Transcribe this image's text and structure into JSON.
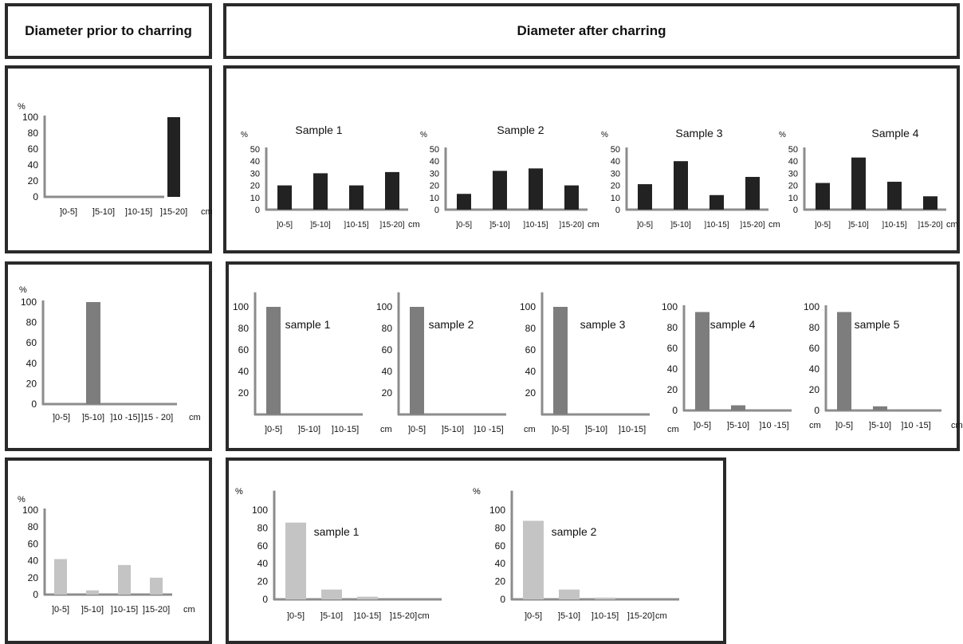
{
  "headers": {
    "prior": "Diameter prior  to charring",
    "after": "Diameter after charring"
  },
  "colors": {
    "black_bar": "#222222",
    "gray_bar": "#7d7d7d",
    "light_bar": "#c4c4c4",
    "axis": "#8c8c8c",
    "frame": "#2a2a2a"
  },
  "chart_data": [
    {
      "id": "r1-prior",
      "type": "bar",
      "title": "",
      "ylabel": "%",
      "ylim": [
        0,
        100
      ],
      "yticks": [
        0,
        20,
        40,
        60,
        80,
        100
      ],
      "categories": [
        "]0-5]",
        "]5-10]",
        "]10-15]",
        "]15-20]"
      ],
      "unit": "cm",
      "values": [
        0,
        0,
        0,
        100
      ],
      "color": "#222222"
    },
    {
      "id": "r1-s1",
      "type": "bar",
      "title": "Sample 1",
      "ylabel": "%",
      "ylim": [
        0,
        50
      ],
      "yticks": [
        0,
        10,
        20,
        30,
        40,
        50
      ],
      "categories": [
        "]0-5]",
        "]5-10]",
        "]10-15]",
        "]15-20]"
      ],
      "unit": "cm",
      "values": [
        20,
        30,
        20,
        31
      ],
      "color": "#222222"
    },
    {
      "id": "r1-s2",
      "type": "bar",
      "title": "Sample 2",
      "ylabel": "%",
      "ylim": [
        0,
        50
      ],
      "yticks": [
        0,
        10,
        20,
        30,
        40,
        50
      ],
      "categories": [
        "]0-5]",
        "]5-10]",
        "]10-15]",
        "]15-20]"
      ],
      "unit": "cm",
      "values": [
        13,
        32,
        34,
        20
      ],
      "color": "#222222"
    },
    {
      "id": "r1-s3",
      "type": "bar",
      "title": "Sample 3",
      "ylabel": "%",
      "ylim": [
        0,
        50
      ],
      "yticks": [
        0,
        10,
        20,
        30,
        40,
        50
      ],
      "categories": [
        "]0-5]",
        "]5-10]",
        "]10-15]",
        "]15-20]"
      ],
      "unit": "cm",
      "values": [
        21,
        40,
        12,
        27
      ],
      "color": "#222222"
    },
    {
      "id": "r1-s4",
      "type": "bar",
      "title": "Sample 4",
      "ylabel": "%",
      "ylim": [
        0,
        50
      ],
      "yticks": [
        0,
        10,
        20,
        30,
        40,
        50
      ],
      "categories": [
        "]0-5]",
        "]5-10]",
        "]10-15]",
        "]15-20]"
      ],
      "unit": "cm",
      "values": [
        22,
        43,
        23,
        11
      ],
      "color": "#222222"
    },
    {
      "id": "r2-prior",
      "type": "bar",
      "title": "",
      "ylabel": "%",
      "ylim": [
        0,
        100
      ],
      "yticks": [
        0,
        20,
        40,
        60,
        80,
        100
      ],
      "categories": [
        "]0-5]",
        "]5-10]",
        "]10 -15]",
        "]15 - 20]"
      ],
      "unit": "cm",
      "values": [
        0,
        100,
        0,
        0
      ],
      "color": "#7d7d7d"
    },
    {
      "id": "r2-s1",
      "type": "bar",
      "title": "sample 1",
      "ylabel": "",
      "ylim": [
        0,
        100
      ],
      "yticks": [
        20,
        40,
        60,
        80,
        100
      ],
      "categories": [
        "]0-5]",
        "]5-10]",
        "]10-15]"
      ],
      "unit": "cm",
      "values": [
        100,
        0,
        0
      ],
      "color": "#7d7d7d"
    },
    {
      "id": "r2-s2",
      "type": "bar",
      "title": "sample 2",
      "ylabel": "",
      "ylim": [
        0,
        100
      ],
      "yticks": [
        20,
        40,
        60,
        80,
        100
      ],
      "categories": [
        "]0-5]",
        "]5-10]",
        "]10 -15]"
      ],
      "unit": "cm",
      "values": [
        100,
        0,
        0
      ],
      "color": "#7d7d7d"
    },
    {
      "id": "r2-s3",
      "type": "bar",
      "title": "sample 3",
      "ylabel": "",
      "ylim": [
        0,
        100
      ],
      "yticks": [
        20,
        40,
        60,
        80,
        100
      ],
      "categories": [
        "]0-5]",
        "]5-10]",
        "]10-15]"
      ],
      "unit": "cm",
      "values": [
        100,
        0,
        0
      ],
      "color": "#7d7d7d"
    },
    {
      "id": "r2-s4",
      "type": "bar",
      "title": "sample 4",
      "ylabel": "",
      "ylim": [
        0,
        100
      ],
      "yticks": [
        0,
        20,
        40,
        60,
        80,
        100
      ],
      "categories": [
        "]0-5]",
        "]5-10]",
        "]10 -15]"
      ],
      "unit": "cm",
      "values": [
        95,
        5,
        0
      ],
      "color": "#7d7d7d"
    },
    {
      "id": "r2-s5",
      "type": "bar",
      "title": "sample 5",
      "ylabel": "",
      "ylim": [
        0,
        100
      ],
      "yticks": [
        0,
        20,
        40,
        60,
        80,
        100
      ],
      "categories": [
        "]0-5]",
        "]5-10]",
        "]10 -15]"
      ],
      "unit": "cm",
      "values": [
        95,
        4,
        0
      ],
      "color": "#7d7d7d"
    },
    {
      "id": "r3-prior",
      "type": "bar",
      "title": "",
      "ylabel": "%",
      "ylim": [
        0,
        100
      ],
      "yticks": [
        0,
        20,
        40,
        60,
        80,
        100
      ],
      "categories": [
        "]0-5]",
        "]5-10]",
        "]10-15]",
        "]15-20]"
      ],
      "unit": "cm",
      "values": [
        42,
        5,
        35,
        20
      ],
      "color": "#c4c4c4"
    },
    {
      "id": "r3-s1",
      "type": "bar",
      "title": "sample 1",
      "ylabel": "%",
      "ylim": [
        0,
        100
      ],
      "yticks": [
        0,
        20,
        40,
        60,
        80,
        100
      ],
      "categories": [
        "]0-5]",
        "]5-10]",
        "]10-15]",
        "]15-20]"
      ],
      "unit": "cm",
      "values": [
        86,
        11,
        3,
        0
      ],
      "color": "#c4c4c4"
    },
    {
      "id": "r3-s2",
      "type": "bar",
      "title": "sample 2",
      "ylabel": "%",
      "ylim": [
        0,
        100
      ],
      "yticks": [
        0,
        20,
        40,
        60,
        80,
        100
      ],
      "categories": [
        "]0-5]",
        "]5-10]",
        "]10-15]",
        "]15-20]"
      ],
      "unit": "cm",
      "values": [
        88,
        11,
        2,
        0
      ],
      "color": "#c4c4c4"
    }
  ]
}
